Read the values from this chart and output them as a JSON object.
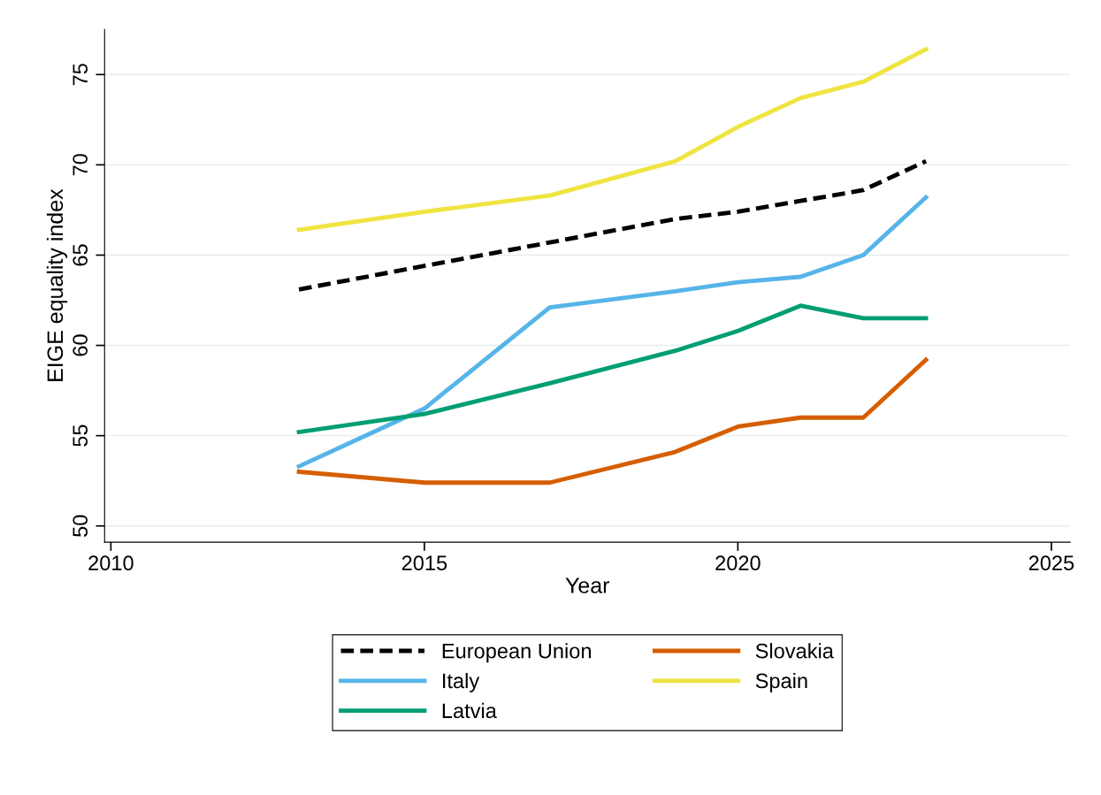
{
  "chart_data": {
    "type": "line",
    "xlabel": "Year",
    "ylabel": "EIGE equality index",
    "x": [
      2013,
      2015,
      2017,
      2019,
      2020,
      2021,
      2022,
      2023
    ],
    "series": [
      {
        "name": "European Union",
        "color": "#000000",
        "line_style": "dashed",
        "values": [
          63.1,
          64.4,
          65.7,
          67.0,
          67.4,
          68.0,
          68.6,
          70.2
        ]
      },
      {
        "name": "Italy",
        "color": "#56b4e9",
        "values": [
          53.3,
          56.5,
          62.1,
          63.0,
          63.5,
          63.8,
          65.0,
          68.2
        ]
      },
      {
        "name": "Latvia",
        "color": "#009e73",
        "values": [
          55.2,
          56.2,
          57.9,
          59.7,
          60.8,
          62.2,
          61.5,
          61.5
        ]
      },
      {
        "name": "Slovakia",
        "color": "#d55e00",
        "values": [
          53.0,
          52.4,
          52.4,
          54.1,
          55.5,
          56.0,
          56.0,
          59.2
        ]
      },
      {
        "name": "Spain",
        "color": "#f0e442",
        "values": [
          66.4,
          67.4,
          68.3,
          70.2,
          72.1,
          73.7,
          74.6,
          76.4
        ]
      }
    ],
    "xlim": [
      2009.9,
      2025.3
    ],
    "xticks": [
      2010,
      2015,
      2020,
      2025
    ],
    "ylim": [
      49.1,
      77.5
    ],
    "yticks": [
      50,
      55,
      60,
      65,
      70,
      75
    ],
    "grid": "y",
    "legend": "bottom",
    "line_style": "solid",
    "marker": "none"
  }
}
